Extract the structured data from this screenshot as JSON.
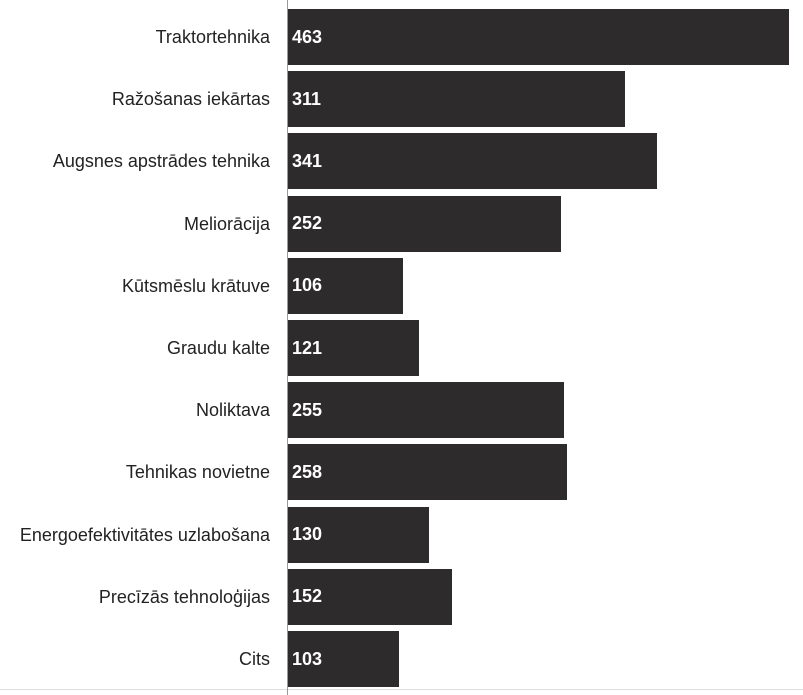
{
  "chart_data": {
    "type": "bar",
    "orientation": "horizontal",
    "categories": [
      "Traktortehnika",
      "Ražošanas iekārtas",
      "Augsnes apstrādes tehnika",
      "Meliorācija",
      "Kūtsmēslu krātuve",
      "Graudu kalte",
      "Noliktava",
      "Tehnikas novietne",
      "Energoefektivitātes uzlabošana",
      "Precīzās tehnoloģijas",
      "Cits"
    ],
    "values": [
      463,
      311,
      341,
      252,
      106,
      121,
      255,
      258,
      130,
      152,
      103
    ],
    "color": "#2d2b2b"
  }
}
